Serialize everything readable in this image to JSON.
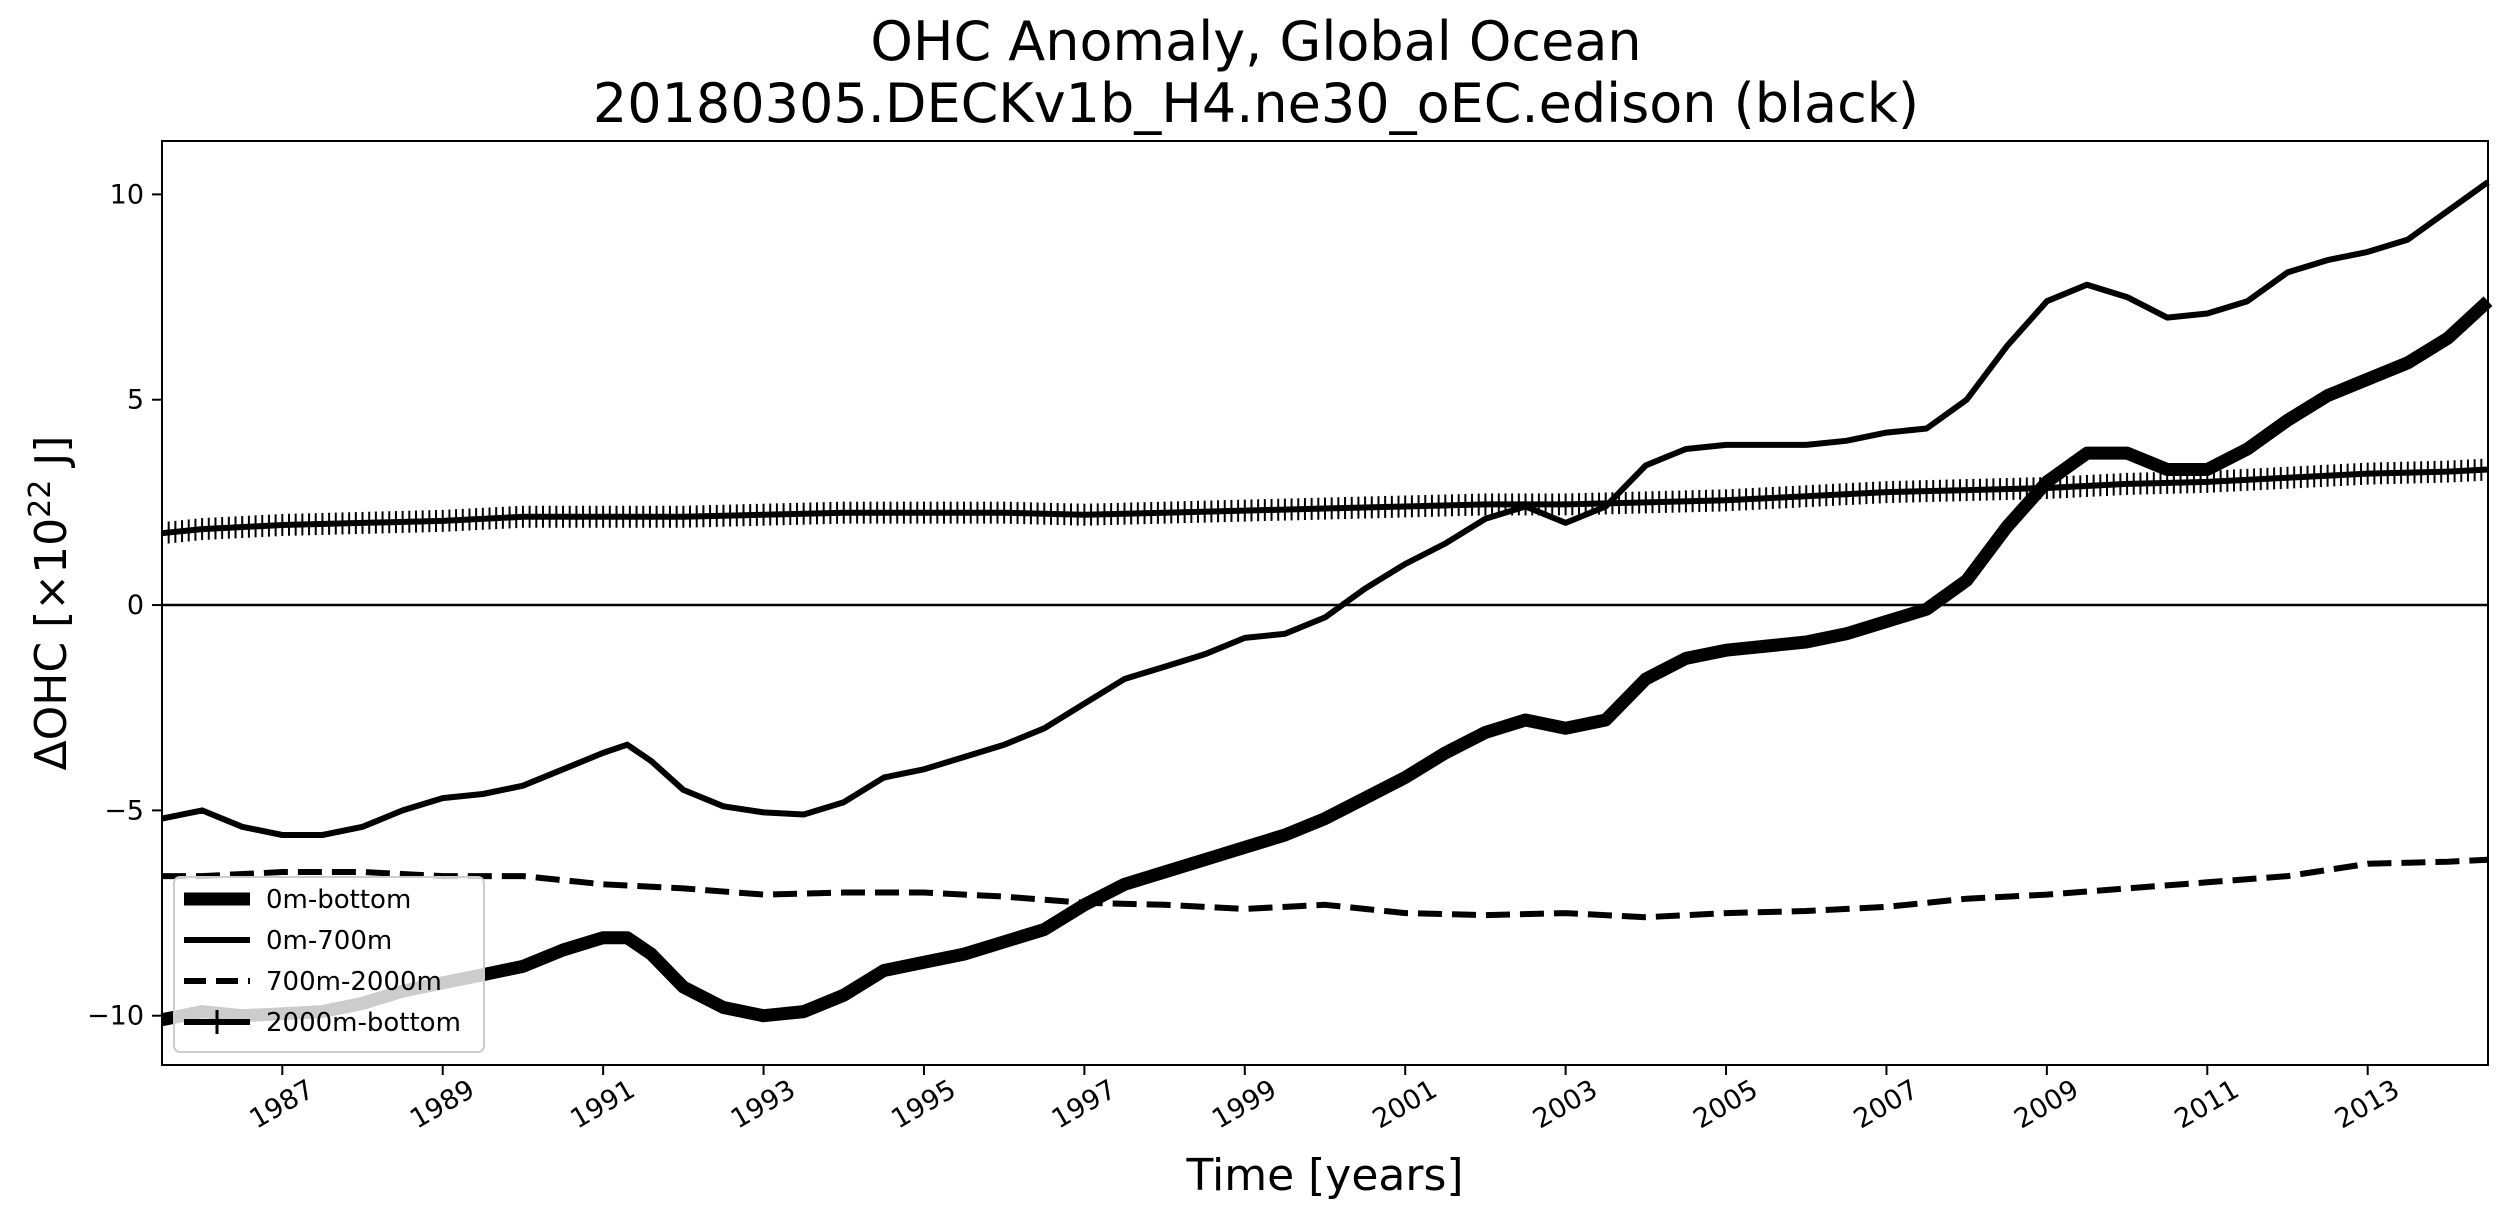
{
  "chart_data": {
    "type": "line",
    "title": "OHC Anomaly, Global Ocean",
    "subtitle": "20180305.DECKv1b_H4.ne30_oEC.edison (black)",
    "xlabel": "Time [years]",
    "ylabel_prefix": "ΔOHC [×10",
    "ylabel_sup": "22",
    "ylabel_suffix": " J]",
    "xlim": [
      1985.5,
      2014.5
    ],
    "ylim": [
      -11.2,
      11.3
    ],
    "x_ticks": [
      1987,
      1989,
      1991,
      1993,
      1995,
      1997,
      1999,
      2001,
      2003,
      2005,
      2007,
      2009,
      2011,
      2013
    ],
    "x_tick_labels": [
      "1987",
      "1989",
      "1991",
      "1993",
      "1995",
      "1997",
      "1999",
      "2001",
      "2003",
      "2005",
      "2007",
      "2009",
      "2011",
      "2013"
    ],
    "y_ticks": [
      -10,
      -5,
      0,
      5,
      10
    ],
    "y_tick_labels": [
      "−10",
      "−5",
      "0",
      "5",
      "10"
    ],
    "zero_line": 0,
    "legend_position": "lower-left",
    "series": [
      {
        "name": "0m-bottom",
        "style": "thick",
        "x": [
          1985.5,
          1986,
          1986.5,
          1987,
          1987.5,
          1988,
          1988.5,
          1989,
          1989.5,
          1990,
          1990.5,
          1991,
          1991.3,
          1991.6,
          1992,
          1992.5,
          1993,
          1993.5,
          1994,
          1994.5,
          1995,
          1995.5,
          1996,
          1996.5,
          1997,
          1997.5,
          1998,
          1998.5,
          1999,
          1999.5,
          2000,
          2000.5,
          2001,
          2001.5,
          2002,
          2002.5,
          2003,
          2003.5,
          2004,
          2004.5,
          2005,
          2005.5,
          2006,
          2006.5,
          2007,
          2007.5,
          2008,
          2008.5,
          2009,
          2009.5,
          2010,
          2010.5,
          2011,
          2011.5,
          2012,
          2012.5,
          2013,
          2013.5,
          2014,
          2014.5
        ],
        "values": [
          -10.1,
          -9.9,
          -10.0,
          -9.95,
          -9.9,
          -9.7,
          -9.4,
          -9.2,
          -9.0,
          -8.8,
          -8.4,
          -8.1,
          -8.1,
          -8.5,
          -9.3,
          -9.8,
          -10.0,
          -9.9,
          -9.5,
          -8.9,
          -8.7,
          -8.5,
          -8.2,
          -7.9,
          -7.3,
          -6.8,
          -6.5,
          -6.2,
          -5.9,
          -5.6,
          -5.2,
          -4.7,
          -4.2,
          -3.6,
          -3.1,
          -2.8,
          -3.0,
          -2.8,
          -1.8,
          -1.3,
          -1.1,
          -1.0,
          -0.9,
          -0.7,
          -0.4,
          -0.1,
          0.6,
          1.9,
          3.0,
          3.7,
          3.7,
          3.3,
          3.3,
          3.8,
          4.5,
          5.1,
          5.5,
          5.9,
          6.5,
          7.4
        ]
      },
      {
        "name": "0m-700m",
        "style": "solid",
        "x": [
          1985.5,
          1986,
          1986.5,
          1987,
          1987.5,
          1988,
          1988.5,
          1989,
          1989.5,
          1990,
          1990.5,
          1991,
          1991.3,
          1991.6,
          1992,
          1992.5,
          1993,
          1993.5,
          1994,
          1994.5,
          1995,
          1995.5,
          1996,
          1996.5,
          1997,
          1997.5,
          1998,
          1998.5,
          1999,
          1999.5,
          2000,
          2000.5,
          2001,
          2001.5,
          2002,
          2002.5,
          2003,
          2003.5,
          2004,
          2004.5,
          2005,
          2005.5,
          2006,
          2006.5,
          2007,
          2007.5,
          2008,
          2008.5,
          2009,
          2009.5,
          2010,
          2010.5,
          2011,
          2011.5,
          2012,
          2012.5,
          2013,
          2013.5,
          2014,
          2014.5
        ],
        "values": [
          -5.2,
          -5.0,
          -5.4,
          -5.6,
          -5.6,
          -5.4,
          -5.0,
          -4.7,
          -4.6,
          -4.4,
          -4.0,
          -3.6,
          -3.4,
          -3.8,
          -4.5,
          -4.9,
          -5.05,
          -5.1,
          -4.8,
          -4.2,
          -4.0,
          -3.7,
          -3.4,
          -3.0,
          -2.4,
          -1.8,
          -1.5,
          -1.2,
          -0.8,
          -0.7,
          -0.3,
          0.4,
          1.0,
          1.5,
          2.1,
          2.4,
          2.0,
          2.4,
          3.4,
          3.8,
          3.9,
          3.9,
          3.9,
          4.0,
          4.2,
          4.3,
          5.0,
          6.3,
          7.4,
          7.8,
          7.5,
          7.0,
          7.1,
          7.4,
          8.1,
          8.4,
          8.6,
          8.9,
          9.6,
          10.3
        ]
      },
      {
        "name": "700m-2000m",
        "style": "dashed",
        "x": [
          1985.5,
          1986,
          1987,
          1988,
          1989,
          1990,
          1991,
          1992,
          1993,
          1994,
          1995,
          1996,
          1997,
          1998,
          1999,
          2000,
          2001,
          2002,
          2003,
          2004,
          2005,
          2006,
          2007,
          2008,
          2009,
          2010,
          2011,
          2012,
          2013,
          2014,
          2014.5
        ],
        "values": [
          -6.6,
          -6.6,
          -6.5,
          -6.5,
          -6.6,
          -6.6,
          -6.8,
          -6.9,
          -7.05,
          -7.0,
          -7.0,
          -7.1,
          -7.25,
          -7.3,
          -7.4,
          -7.3,
          -7.5,
          -7.55,
          -7.5,
          -7.6,
          -7.5,
          -7.45,
          -7.35,
          -7.15,
          -7.05,
          -6.9,
          -6.75,
          -6.6,
          -6.3,
          -6.25,
          -6.2
        ]
      },
      {
        "name": "2000m-bottom",
        "style": "plus",
        "x": [
          1985.5,
          1986,
          1987,
          1988,
          1989,
          1990,
          1991,
          1992,
          1993,
          1994,
          1995,
          1996,
          1997,
          1998,
          1999,
          2000,
          2001,
          2002,
          2003,
          2004,
          2005,
          2006,
          2007,
          2008,
          2009,
          2010,
          2011,
          2012,
          2013,
          2014,
          2014.5
        ],
        "values": [
          1.75,
          1.85,
          1.95,
          2.0,
          2.05,
          2.15,
          2.15,
          2.15,
          2.2,
          2.25,
          2.25,
          2.25,
          2.2,
          2.25,
          2.3,
          2.35,
          2.4,
          2.45,
          2.45,
          2.5,
          2.55,
          2.65,
          2.75,
          2.8,
          2.85,
          2.95,
          3.0,
          3.1,
          3.2,
          3.25,
          3.3
        ]
      }
    ]
  }
}
